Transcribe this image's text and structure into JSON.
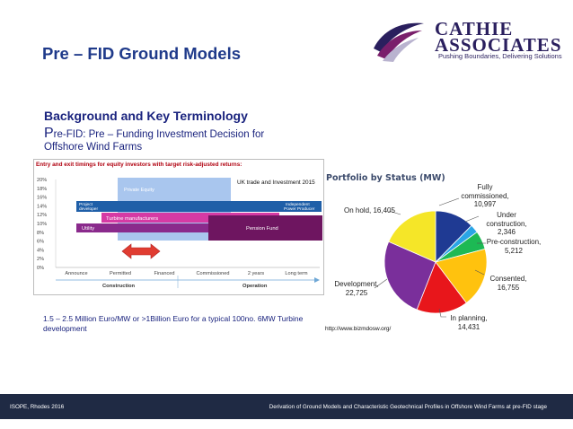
{
  "slide": {
    "title": "Pre – FID Ground Models",
    "heading": "Background and Key Terminology",
    "subtitle_first_letter": "P",
    "subtitle_line1_rest": "re-FID: Pre – Funding Investment Decision for",
    "subtitle_line2": "Offshore Wind Farms",
    "note": "1.5 – 2.5 Million  Euro/MW or >1Billion Euro  for a typical 100no. 6MW Turbine development"
  },
  "logo": {
    "name_line1": "Cathie",
    "name_line2": "Associates",
    "tagline": "Pushing Boundaries, Delivering Solutions",
    "colors": {
      "text": "#2a1f5e",
      "accent": "#7a1f6b"
    }
  },
  "timing_chart": {
    "heading": "Entry and exit timings for equity investors with target risk-adjusted returns:",
    "credit": "UK trade and Investment 2015",
    "y_ticks": [
      "20%",
      "18%",
      "16%",
      "14%",
      "12%",
      "10%",
      "8%",
      "6%",
      "4%",
      "2%",
      "0%"
    ],
    "x_ticks": [
      "Announce",
      "Permitted",
      "Financed",
      "Commissioned",
      "2 years",
      "Long term"
    ],
    "phases": [
      "Construction",
      "Operation"
    ],
    "bars": [
      {
        "label": "Private Equity",
        "color": "#a9c6ee"
      },
      {
        "label": "Project developer",
        "color": "#1f5fa8"
      },
      {
        "label": "Independent Power Producer",
        "color": "#1f5fa8"
      },
      {
        "label": "Turbine manufacturers",
        "color": "#d63aa4"
      },
      {
        "label": "Utility",
        "color": "#8a2a8c"
      },
      {
        "label": "Pension Fund",
        "color": "#6e1560"
      }
    ],
    "arrow_color": "#e03c31"
  },
  "portfolio": {
    "title": "Portfolio by Status (MW)",
    "url": "http://www.bizmdosw.org/",
    "chart_data": {
      "type": "pie",
      "title": "Portfolio by Status (MW)",
      "slices": [
        {
          "label": "Fully commissioned,",
          "display": "10,997",
          "value": 10997,
          "color": "#1f3a93"
        },
        {
          "label": "Under construction,",
          "display": "2,346",
          "value": 2346,
          "color": "#2aa5e6"
        },
        {
          "label": "Pre-construction,",
          "display": "5,212",
          "value": 5212,
          "color": "#1db954"
        },
        {
          "label": "Consented,",
          "display": "16,755",
          "value": 16755,
          "color": "#ffc20e"
        },
        {
          "label": "In planning,",
          "display": "14,431",
          "value": 14431,
          "color": "#e8161b"
        },
        {
          "label": "Development,",
          "display": "22,725",
          "value": 22725,
          "color": "#7a2f9b"
        },
        {
          "label": "On hold,",
          "display": "16,405",
          "value": 16405,
          "color": "#f5e628"
        }
      ]
    }
  },
  "footer": {
    "left": "ISOPE, Rhodes 2016",
    "right": "Derivation of Ground Models and Characteristic Geotechnical Profiles in Offshore Wind Farms at pre-FID stage",
    "background": "#1f2a44"
  }
}
